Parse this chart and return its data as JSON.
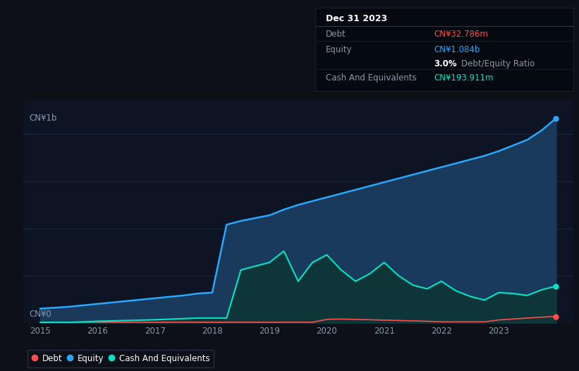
{
  "background_color": "#0d1117",
  "plot_bg_color": "#0d1525",
  "ylim": [
    0,
    1.18
  ],
  "ylabel_top": "CN¥1b",
  "ylabel_bottom": "CN¥0",
  "years": [
    2015.0,
    2015.5,
    2016.0,
    2016.5,
    2017.0,
    2017.5,
    2017.75,
    2018.0,
    2018.25,
    2018.5,
    2018.75,
    2019.0,
    2019.25,
    2019.5,
    2019.75,
    2020.0,
    2020.25,
    2020.5,
    2020.75,
    2021.0,
    2021.25,
    2021.5,
    2021.75,
    2022.0,
    2022.25,
    2022.5,
    2022.75,
    2023.0,
    2023.25,
    2023.5,
    2023.75,
    2024.0
  ],
  "equity": [
    0.075,
    0.085,
    0.1,
    0.115,
    0.13,
    0.145,
    0.155,
    0.16,
    0.52,
    0.54,
    0.555,
    0.57,
    0.6,
    0.625,
    0.645,
    0.665,
    0.685,
    0.705,
    0.725,
    0.745,
    0.765,
    0.785,
    0.805,
    0.825,
    0.845,
    0.865,
    0.885,
    0.91,
    0.94,
    0.97,
    1.02,
    1.084
  ],
  "debt": [
    0.003,
    0.003,
    0.003,
    0.003,
    0.003,
    0.003,
    0.003,
    0.003,
    0.003,
    0.003,
    0.003,
    0.003,
    0.003,
    0.003,
    0.003,
    0.018,
    0.02,
    0.018,
    0.016,
    0.014,
    0.012,
    0.01,
    0.008,
    0.005,
    0.005,
    0.005,
    0.005,
    0.015,
    0.02,
    0.025,
    0.03,
    0.033
  ],
  "cash": [
    0.002,
    0.002,
    0.008,
    0.012,
    0.016,
    0.022,
    0.025,
    0.025,
    0.025,
    0.28,
    0.3,
    0.32,
    0.38,
    0.22,
    0.32,
    0.36,
    0.28,
    0.22,
    0.26,
    0.32,
    0.25,
    0.2,
    0.18,
    0.22,
    0.17,
    0.14,
    0.12,
    0.16,
    0.155,
    0.145,
    0.175,
    0.194
  ],
  "equity_color": "#29a8ff",
  "debt_color": "#ff4c4c",
  "cash_color": "#00e5c8",
  "equity_fill": "#1a3a5c",
  "cash_fill": "#0d3535",
  "x_ticks": [
    2015,
    2016,
    2017,
    2018,
    2019,
    2020,
    2021,
    2022,
    2023
  ],
  "x_min": 2014.7,
  "x_max": 2024.3,
  "gridline_color": "#1e2d45",
  "gridline_vals": [
    0.25,
    0.5,
    0.75,
    1.0
  ],
  "top_gridline_val": 1.0,
  "legend_items": [
    {
      "label": "Debt",
      "color": "#ff4c4c"
    },
    {
      "label": "Equity",
      "color": "#29a8ff"
    },
    {
      "label": "Cash And Equivalents",
      "color": "#00e5c8"
    }
  ],
  "infobox": {
    "title": "Dec 31 2023",
    "title_color": "#ffffff",
    "bg_color": "#050a10",
    "border_color": "#2a3550",
    "rows": [
      {
        "label": "Debt",
        "label_color": "#8899aa",
        "value": "CN¥32.786m",
        "value_color": "#ff4c4c",
        "ratio": null
      },
      {
        "label": "Equity",
        "label_color": "#8899aa",
        "value": "CN¥1.084b",
        "value_color": "#29a8ff",
        "ratio": "3.0% Debt/Equity Ratio"
      },
      {
        "label": "Cash And Equivalents",
        "label_color": "#8899aa",
        "value": "CN¥193.911m",
        "value_color": "#00e5c8",
        "ratio": null
      }
    ]
  }
}
